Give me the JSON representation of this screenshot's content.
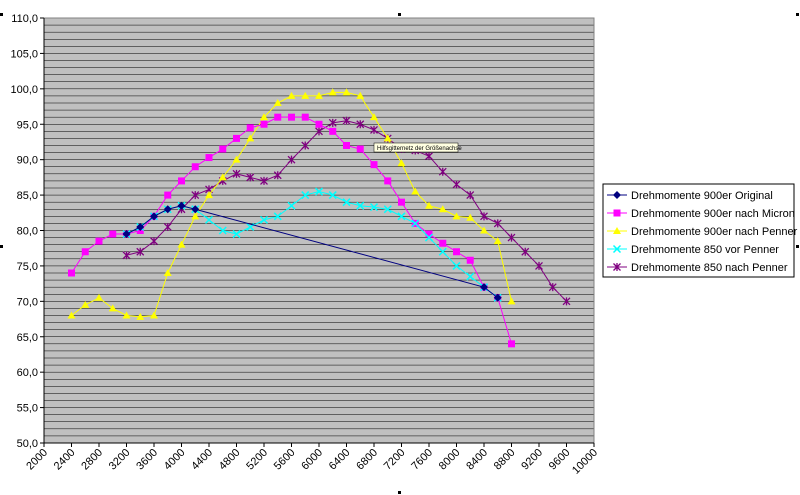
{
  "chart_data": {
    "type": "line",
    "title": "",
    "xlabel": "",
    "ylabel": "",
    "xlim": [
      2000,
      10000
    ],
    "ylim": [
      50,
      110
    ],
    "x_ticks": [
      "2000",
      "2400",
      "2800",
      "3200",
      "3600",
      "4000",
      "4400",
      "4800",
      "5200",
      "5600",
      "6000",
      "6400",
      "6800",
      "7200",
      "7600",
      "8000",
      "8400",
      "8800",
      "9200",
      "9600",
      "10000"
    ],
    "y_ticks": [
      "50,0",
      "55,0",
      "60,0",
      "65,0",
      "70,0",
      "75,0",
      "80,0",
      "85,0",
      "90,0",
      "95,0",
      "100,0",
      "105,0",
      "110,0"
    ],
    "grid": true,
    "legend_position": "right",
    "plot_background": "#c0c0c0",
    "tooltip": "Hilfsgitternetz der Größenachse",
    "series": [
      {
        "name": "Drehmomente 900er Original",
        "color": "#000080",
        "marker": "diamond",
        "points": [
          [
            3200,
            79.5
          ],
          [
            3400,
            80.5
          ],
          [
            3600,
            82
          ],
          [
            3800,
            83
          ],
          [
            4000,
            83.5
          ],
          [
            4200,
            83
          ],
          [
            8400,
            72
          ],
          [
            8600,
            70.5
          ]
        ]
      },
      {
        "name": "Drehmomente 900er nach Micron",
        "color": "#ff00ff",
        "marker": "square",
        "points": [
          [
            2400,
            74
          ],
          [
            2600,
            77
          ],
          [
            2800,
            78.5
          ],
          [
            3000,
            79.5
          ],
          [
            3200,
            79.5
          ],
          [
            3400,
            80
          ],
          [
            3600,
            82
          ],
          [
            3800,
            85
          ],
          [
            4000,
            87
          ],
          [
            4200,
            89
          ],
          [
            4400,
            90.3
          ],
          [
            4600,
            91.5
          ],
          [
            4800,
            93
          ],
          [
            5000,
            94.5
          ],
          [
            5200,
            95
          ],
          [
            5400,
            96
          ],
          [
            5600,
            96
          ],
          [
            5800,
            96
          ],
          [
            6000,
            95
          ],
          [
            6200,
            94
          ],
          [
            6400,
            92
          ],
          [
            6600,
            91.5
          ],
          [
            6800,
            89.3
          ],
          [
            7000,
            87
          ],
          [
            7200,
            84
          ],
          [
            7400,
            81
          ],
          [
            7600,
            79.5
          ],
          [
            7800,
            78.2
          ],
          [
            8000,
            77
          ],
          [
            8200,
            75.8
          ],
          [
            8400,
            72
          ],
          [
            8600,
            70.5
          ],
          [
            8800,
            64
          ]
        ]
      },
      {
        "name": "Drehmomente 900er nach Penner",
        "color": "#ffff00",
        "marker": "triangle",
        "points": [
          [
            2400,
            68
          ],
          [
            2600,
            69.5
          ],
          [
            2800,
            70.5
          ],
          [
            3000,
            69
          ],
          [
            3200,
            68
          ],
          [
            3400,
            67.8
          ],
          [
            3600,
            68
          ],
          [
            3800,
            74
          ],
          [
            4000,
            78
          ],
          [
            4200,
            82
          ],
          [
            4400,
            85
          ],
          [
            4600,
            87.5
          ],
          [
            4800,
            90
          ],
          [
            5000,
            93
          ],
          [
            5200,
            96
          ],
          [
            5400,
            98
          ],
          [
            5600,
            99
          ],
          [
            5800,
            99
          ],
          [
            6000,
            99
          ],
          [
            6200,
            99.5
          ],
          [
            6400,
            99.5
          ],
          [
            6600,
            99
          ],
          [
            6800,
            96
          ],
          [
            7000,
            93
          ],
          [
            7200,
            89.5
          ],
          [
            7400,
            85.5
          ],
          [
            7600,
            83.5
          ],
          [
            7800,
            83
          ],
          [
            8000,
            82
          ],
          [
            8200,
            81.8
          ],
          [
            8400,
            80
          ],
          [
            8600,
            78.5
          ],
          [
            8800,
            70
          ]
        ]
      },
      {
        "name": "Drehmomente 850 vor Penner",
        "color": "#00ffff",
        "marker": "x",
        "points": [
          [
            3200,
            79.5
          ],
          [
            3400,
            80.5
          ],
          [
            3600,
            82
          ],
          [
            3800,
            83
          ],
          [
            4000,
            83.5
          ],
          [
            4200,
            83
          ],
          [
            4400,
            81.5
          ],
          [
            4600,
            80
          ],
          [
            4800,
            79.5
          ],
          [
            5000,
            80.5
          ],
          [
            5200,
            81.5
          ],
          [
            5400,
            82
          ],
          [
            5600,
            83.5
          ],
          [
            5800,
            85
          ],
          [
            6000,
            85.5
          ],
          [
            6200,
            85
          ],
          [
            6400,
            84
          ],
          [
            6600,
            83.5
          ],
          [
            6800,
            83.3
          ],
          [
            7000,
            83
          ],
          [
            7200,
            82
          ],
          [
            7400,
            81
          ],
          [
            7600,
            79
          ],
          [
            7800,
            77
          ],
          [
            8000,
            75
          ],
          [
            8200,
            73.5
          ],
          [
            8400,
            72
          ],
          [
            8600,
            70.5
          ]
        ]
      },
      {
        "name": "Drehmomente 850 nach Penner",
        "color": "#800080",
        "marker": "star",
        "points": [
          [
            3200,
            76.5
          ],
          [
            3400,
            77
          ],
          [
            3600,
            78.5
          ],
          [
            3800,
            80.5
          ],
          [
            4000,
            83
          ],
          [
            4200,
            85
          ],
          [
            4400,
            85.8
          ],
          [
            4600,
            87
          ],
          [
            4800,
            88
          ],
          [
            5000,
            87.5
          ],
          [
            5200,
            87
          ],
          [
            5400,
            87.8
          ],
          [
            5600,
            90
          ],
          [
            5800,
            92
          ],
          [
            6000,
            94
          ],
          [
            6200,
            95.2
          ],
          [
            6400,
            95.5
          ],
          [
            6600,
            95
          ],
          [
            6800,
            94.2
          ],
          [
            7000,
            93
          ],
          [
            7200,
            91.5
          ],
          [
            7400,
            91.3
          ],
          [
            7600,
            90.5
          ],
          [
            7800,
            88.3
          ],
          [
            8000,
            86.5
          ],
          [
            8200,
            85
          ],
          [
            8400,
            82
          ],
          [
            8600,
            81
          ],
          [
            8800,
            79
          ],
          [
            9000,
            77
          ],
          [
            9200,
            75
          ],
          [
            9400,
            72
          ],
          [
            9600,
            70
          ]
        ]
      }
    ]
  }
}
